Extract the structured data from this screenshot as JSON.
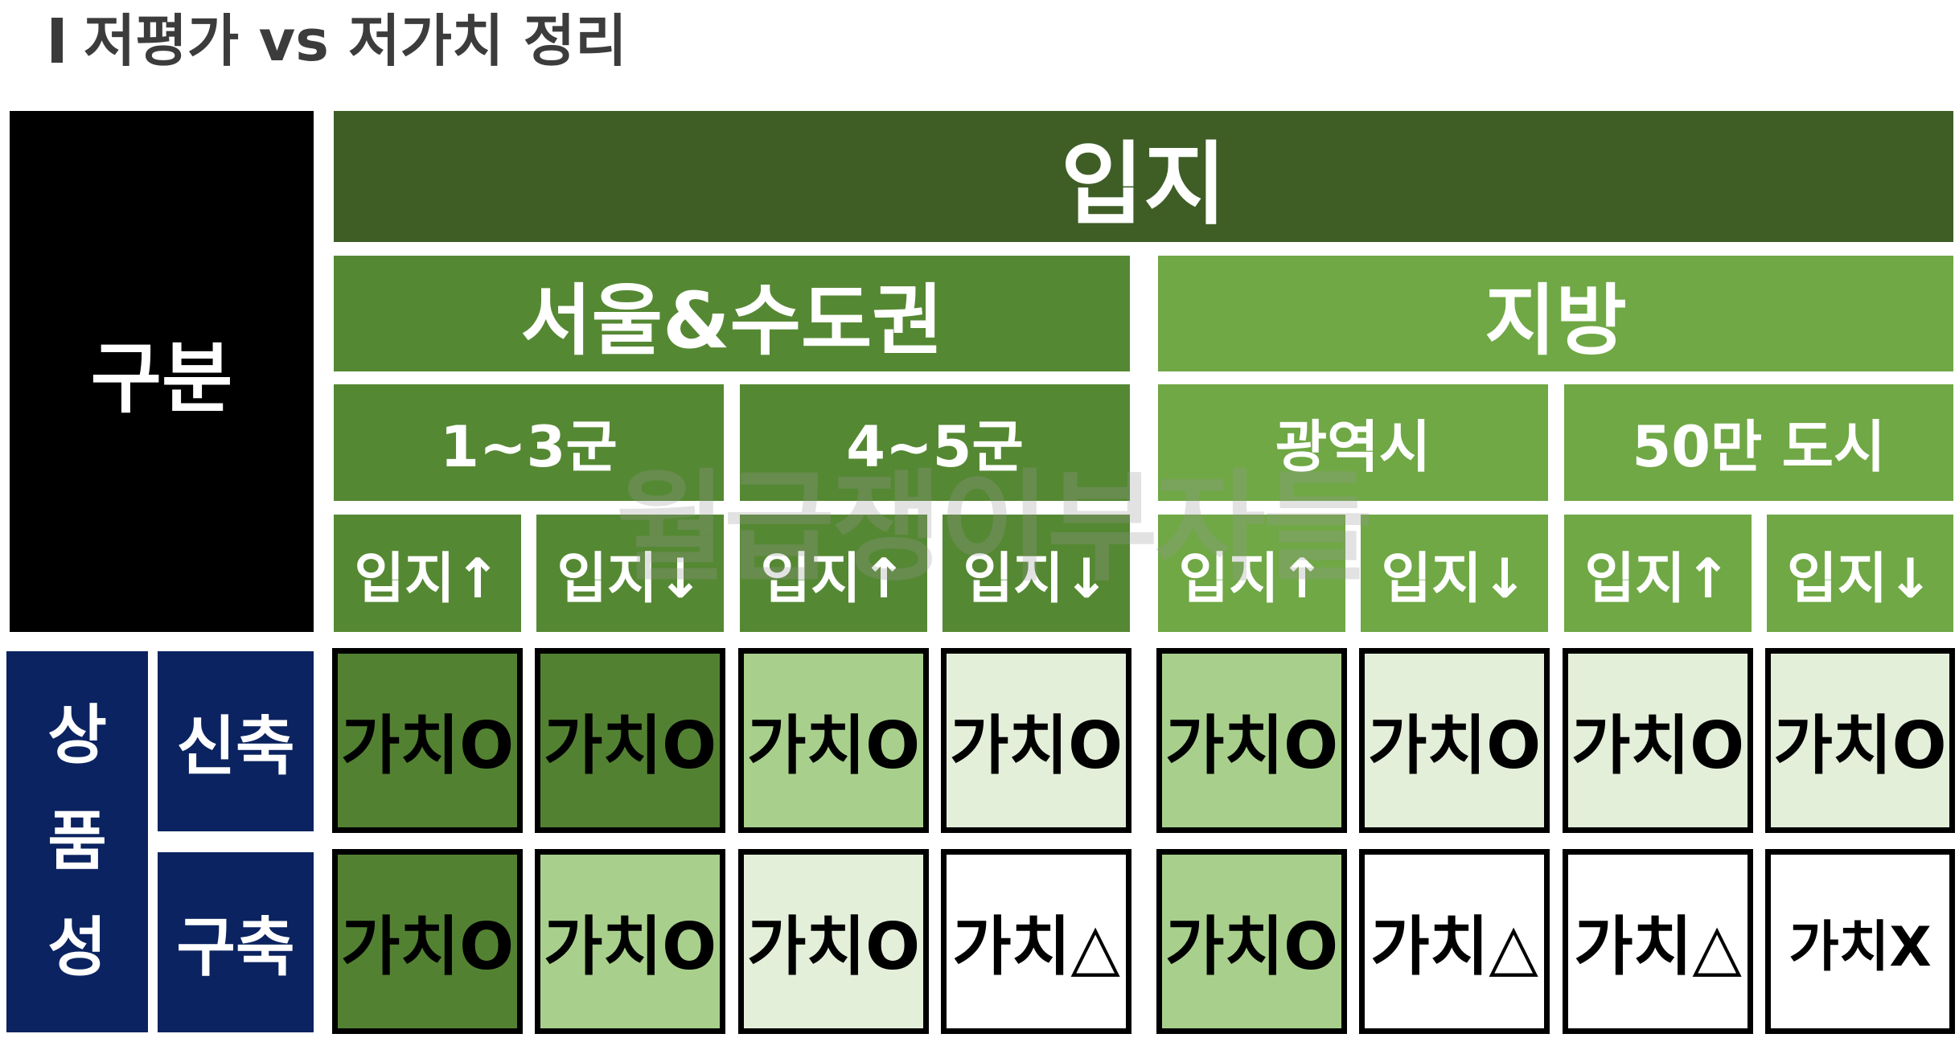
{
  "title": "저평가 vs 저가치 정리",
  "header": {
    "category": "구분",
    "location": "입지",
    "regions": [
      "서울&수도권",
      "지방"
    ],
    "subregions": [
      "1~3군",
      "4~5군",
      "광역시",
      "50만 도시"
    ],
    "directions": [
      "입지↑",
      "입지↓",
      "입지↑",
      "입지↓",
      "입지↑",
      "입지↓",
      "입지↑",
      "입지↓"
    ]
  },
  "rows": {
    "group_label": "상\n품\n성",
    "labels": [
      "신축",
      "구축"
    ],
    "new_build": [
      "가치O",
      "가치O",
      "가치O",
      "가치O",
      "가치O",
      "가치O",
      "가치O",
      "가치O"
    ],
    "old_build": [
      "가치O",
      "가치O",
      "가치O",
      "가치△",
      "가치O",
      "가치△",
      "가치△",
      "가치X"
    ]
  },
  "watermark": "월급쟁이부자들",
  "colors": {
    "dark_green": "#3e5e26",
    "mid_green": "#558833",
    "light_green": "#6fa845",
    "navy": "#0b2360",
    "cell_dark": "#538132",
    "cell_mid": "#a8d08c",
    "cell_pale": "#e3efd9",
    "cell_white": "#ffffff"
  }
}
